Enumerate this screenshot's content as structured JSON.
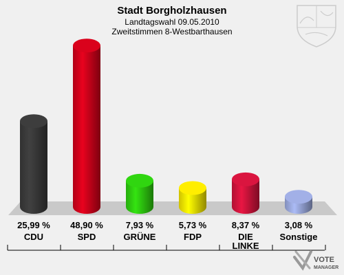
{
  "chart_data": {
    "type": "bar",
    "title": "Stadt Borgholzhausen",
    "subtitle": "Landtagswahl 09.05.2010",
    "subtitle2": "Zweitstimmen 8-Westbarthausen",
    "unit": "%",
    "categories": [
      "CDU",
      "SPD",
      "GRÜNE",
      "FDP",
      "DIE LINKE",
      "Sonstige"
    ],
    "values": [
      25.99,
      48.9,
      7.93,
      5.73,
      8.37,
      3.08
    ],
    "value_labels": [
      "25,99 %",
      "48,90 %",
      "7,93 %",
      "5,73 %",
      "8,37 %",
      "3,08 %"
    ],
    "colors": [
      "#3a3a3a",
      "#d0021b",
      "#2ecc0f",
      "#f4e300",
      "#d0143c",
      "#9aa8dc"
    ],
    "ylim": [
      0,
      50
    ],
    "grid": false,
    "legend": "none"
  },
  "branding": {
    "logo_line1": "VOTE",
    "logo_line2": "MANAGER",
    "emblem_icon": "nrw-coat-of-arms-icon",
    "logo_icon": "vote-manager-check-icon"
  }
}
